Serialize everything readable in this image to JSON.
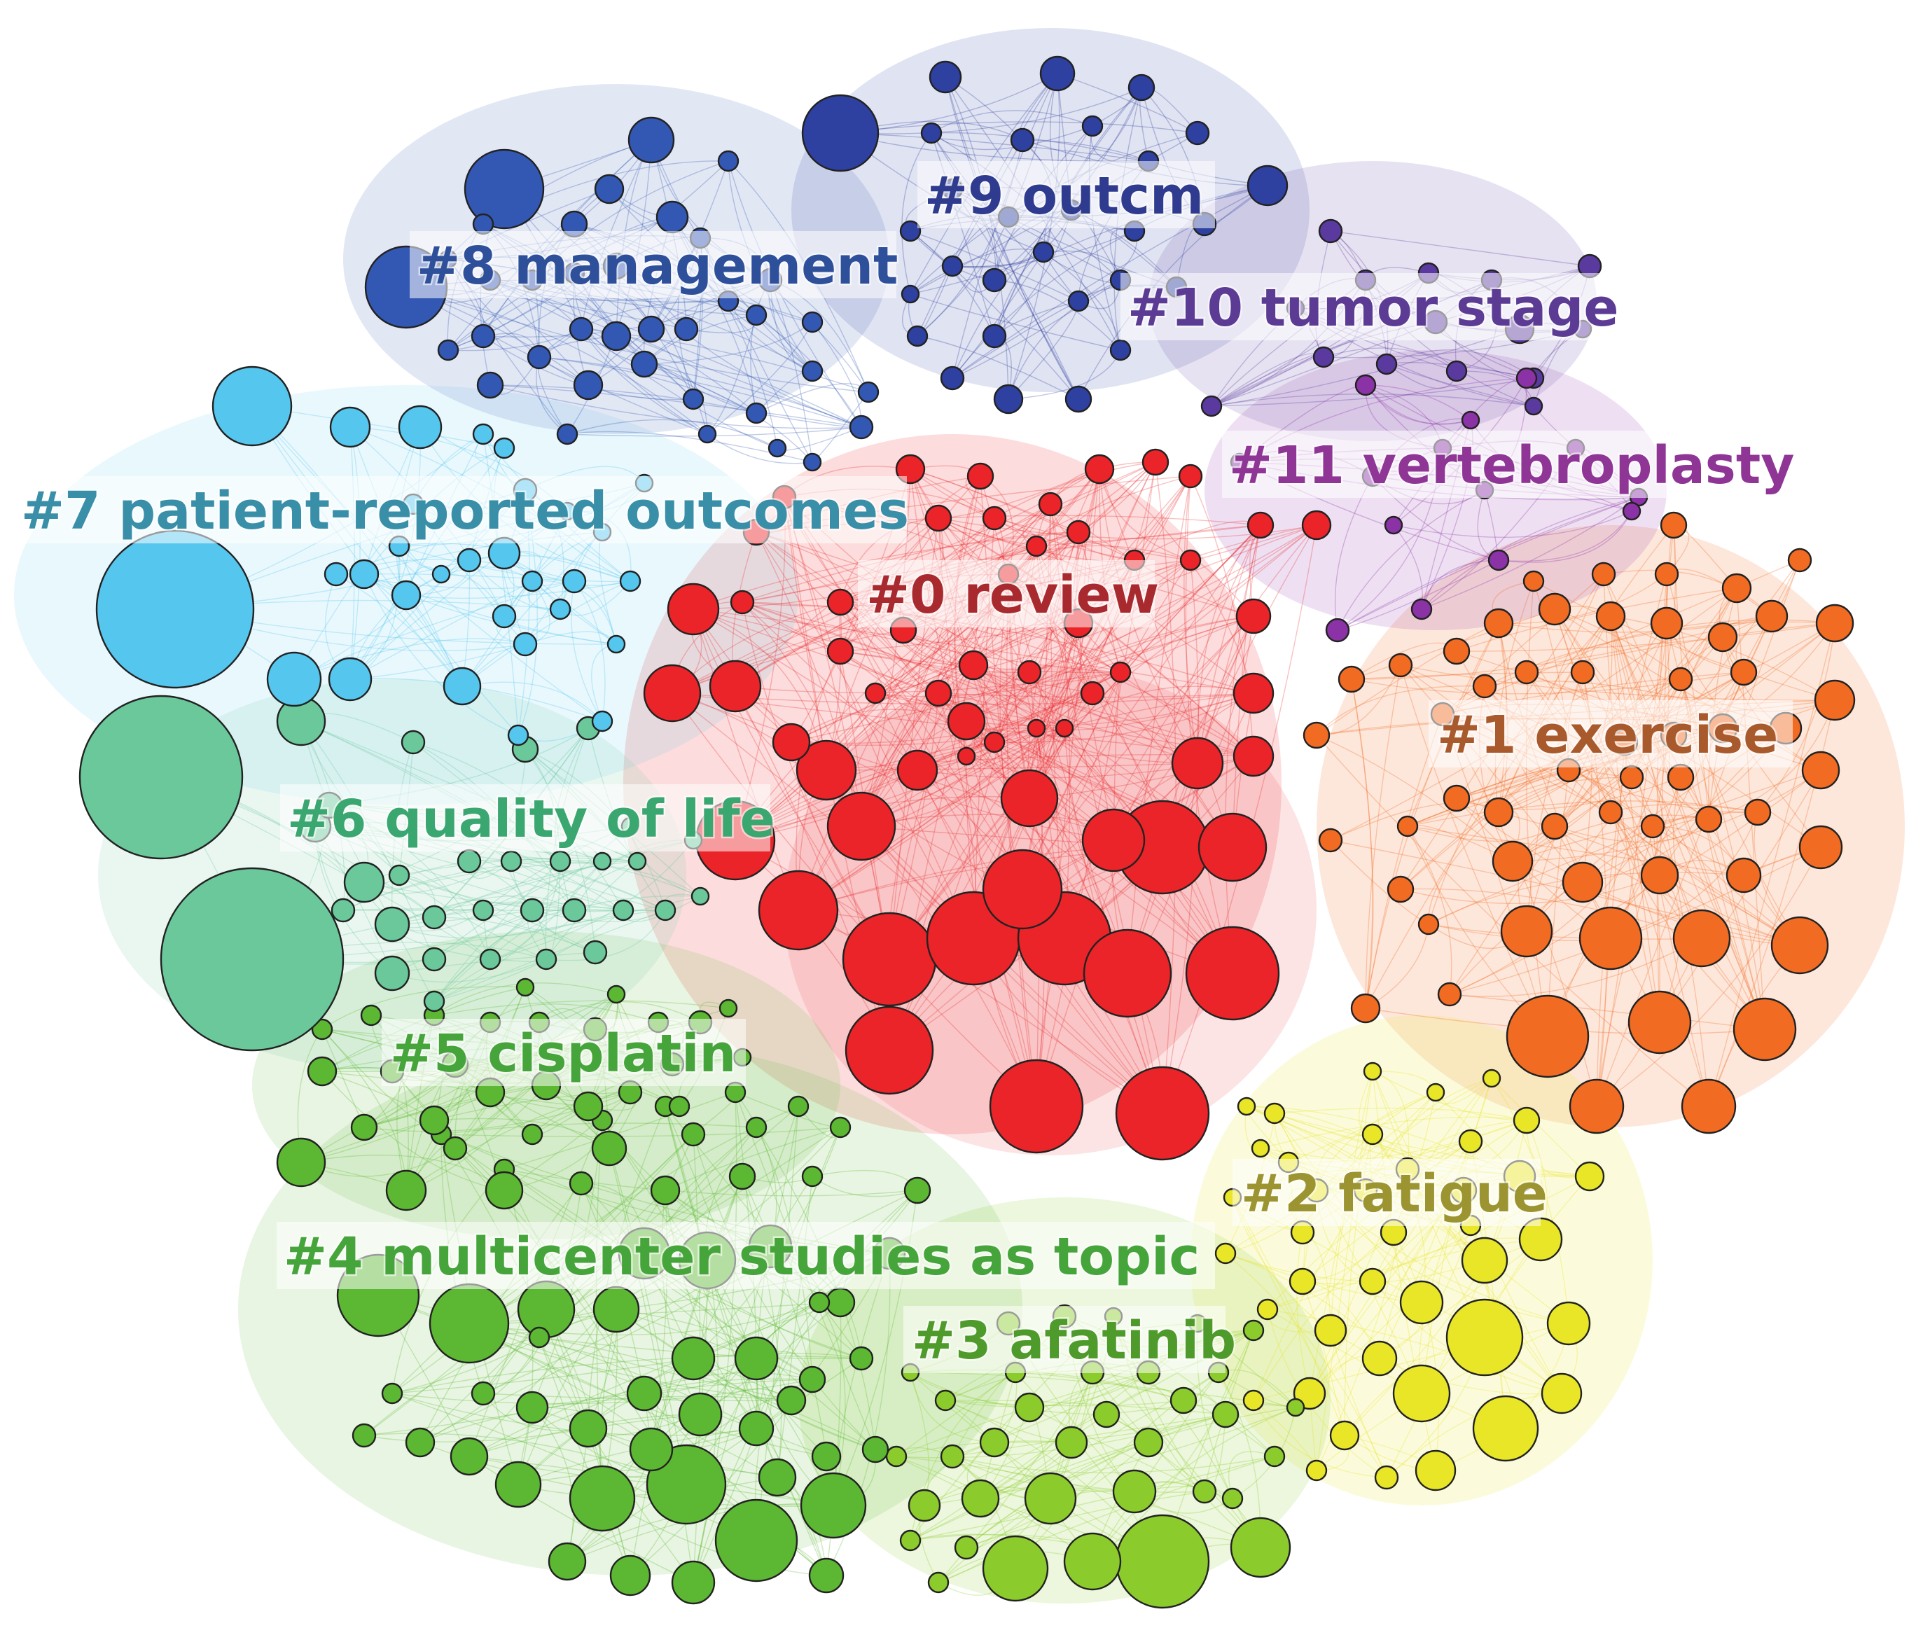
{
  "clusters": [
    {
      "id": "c0",
      "label": "#0 review",
      "color": "#ea2428",
      "label_color": "#a82a2f"
    },
    {
      "id": "c1",
      "label": "#1 exercise",
      "color": "#f26b22",
      "label_color": "#a85a2c"
    },
    {
      "id": "c2",
      "label": "#2 fatigue",
      "color": "#e8e626",
      "label_color": "#9c9430"
    },
    {
      "id": "c3",
      "label": "#3 afatinib",
      "color": "#8bcc2c",
      "label_color": "#4e9a2a"
    },
    {
      "id": "c4",
      "label": "#4 multicenter studies as topic",
      "color": "#5cb832",
      "label_color": "#45a43a"
    },
    {
      "id": "c5",
      "label": "#5 cisplatin",
      "color": "#5cb832",
      "label_color": "#45a43a"
    },
    {
      "id": "c6",
      "label": "#6 quality of life",
      "color": "#6ac89a",
      "label_color": "#3aa670"
    },
    {
      "id": "c7",
      "label": "#7 patient-reported outcomes",
      "color": "#55c6ee",
      "label_color": "#3a8fa8"
    },
    {
      "id": "c8",
      "label": "#8 management",
      "color": "#3358b4",
      "label_color": "#2e4f9a"
    },
    {
      "id": "c9",
      "label": "#9 outcm",
      "color": "#2e40a0",
      "label_color": "#2e3b8e"
    },
    {
      "id": "c10",
      "label": "#10 tumor stage",
      "color": "#5b3aa0",
      "label_color": "#5c3b94"
    },
    {
      "id": "c11",
      "label": "#11 vertebroplasty",
      "color": "#8a32a6",
      "label_color": "#8e3596"
    }
  ]
}
